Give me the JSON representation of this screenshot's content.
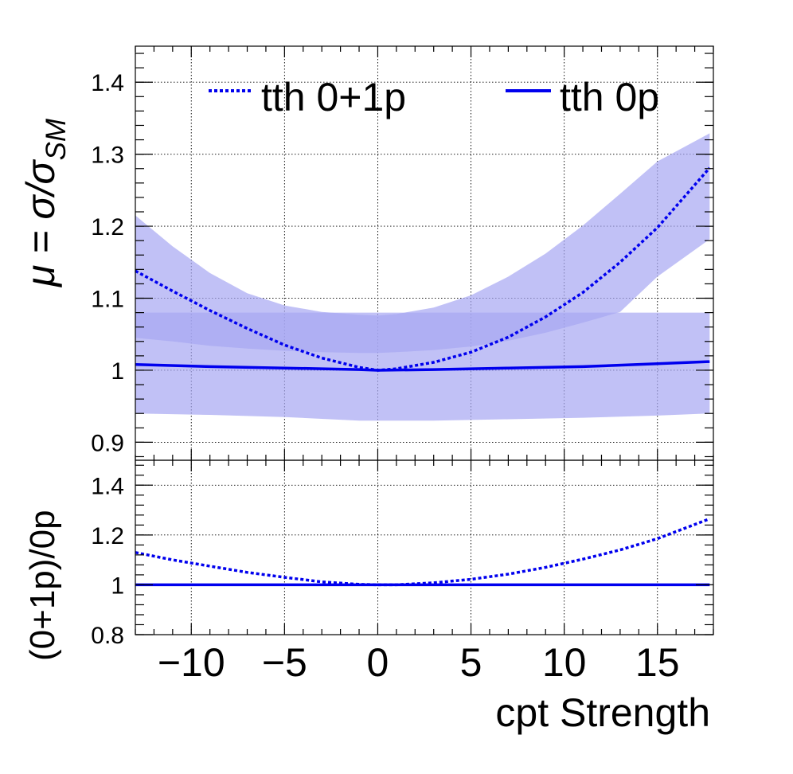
{
  "chart_data": [
    {
      "type": "line",
      "panel": "top",
      "ylabel": "μ = σ/σ",
      "ylabel_sub": "SM",
      "xlim": [
        -13,
        18
      ],
      "ylim": [
        0.875,
        1.45
      ],
      "xticks": [
        -10,
        -5,
        0,
        5,
        10,
        15
      ],
      "yticks": [
        0.9,
        1,
        1.1,
        1.2,
        1.3,
        1.4
      ],
      "ytick_labels": [
        "0.9",
        "1",
        "1.1",
        "1.2",
        "1.3",
        "1.4"
      ],
      "grid": true,
      "legend_position": "top",
      "series": [
        {
          "name": "tth 0+1p",
          "style": "dotted",
          "x": [
            -13,
            -11,
            -9,
            -7,
            -5,
            -3,
            -1,
            0,
            1,
            3,
            5,
            7,
            9,
            11,
            13,
            15,
            17.8
          ],
          "values": [
            1.138,
            1.11,
            1.083,
            1.058,
            1.035,
            1.017,
            1.004,
            1.0,
            1.002,
            1.011,
            1.025,
            1.046,
            1.074,
            1.108,
            1.15,
            1.198,
            1.281
          ],
          "band_upper": [
            1.215,
            1.172,
            1.135,
            1.107,
            1.09,
            1.081,
            1.077,
            1.076,
            1.078,
            1.087,
            1.104,
            1.13,
            1.162,
            1.201,
            1.245,
            1.29,
            1.329
          ],
          "band_lower": [
            1.045,
            1.04,
            1.034,
            1.03,
            1.027,
            1.025,
            1.024,
            1.024,
            1.025,
            1.028,
            1.033,
            1.041,
            1.052,
            1.066,
            1.081,
            1.13,
            1.182
          ]
        },
        {
          "name": "tth 0p",
          "style": "solid",
          "x": [
            -13,
            -9,
            -5,
            -1,
            0,
            3,
            7,
            11,
            15,
            17.8
          ],
          "values": [
            1.008,
            1.005,
            1.003,
            1.001,
            1.0,
            1.001,
            1.003,
            1.005,
            1.009,
            1.012
          ],
          "band_upper": [
            1.08,
            1.08,
            1.08,
            1.08,
            1.08,
            1.08,
            1.08,
            1.08,
            1.08,
            1.08
          ],
          "band_lower": [
            0.94,
            0.938,
            0.935,
            0.93,
            0.93,
            0.93,
            0.932,
            0.934,
            0.937,
            0.94
          ]
        }
      ]
    },
    {
      "type": "line",
      "panel": "bottom",
      "xlabel": "cpt Strength",
      "ylabel": "(0+1p)/0p",
      "xlim": [
        -13,
        18
      ],
      "ylim": [
        0.8,
        1.5
      ],
      "xticks": [
        -10,
        -5,
        0,
        5,
        10,
        15
      ],
      "xtick_labels": [
        "−10",
        "−5",
        "0",
        "5",
        "10",
        "15"
      ],
      "yticks": [
        0.8,
        1,
        1.2,
        1.4
      ],
      "ytick_labels": [
        "0.8",
        "1",
        "1.2",
        "1.4"
      ],
      "grid": true,
      "series": [
        {
          "style": "dotted",
          "x": [
            -13,
            -11,
            -9,
            -7,
            -5,
            -3,
            -1,
            0,
            1,
            3,
            5,
            7,
            9,
            11,
            13,
            15,
            17.8
          ],
          "values": [
            1.13,
            1.1,
            1.075,
            1.05,
            1.03,
            1.012,
            1.002,
            1.0,
            1.0,
            1.008,
            1.022,
            1.043,
            1.07,
            1.103,
            1.14,
            1.185,
            1.265
          ]
        },
        {
          "style": "solid",
          "x": [
            -13,
            17.8
          ],
          "values": [
            1.0,
            1.0
          ]
        }
      ]
    }
  ],
  "colors": {
    "line": "#0000ee",
    "band": "#a6a6f2"
  }
}
